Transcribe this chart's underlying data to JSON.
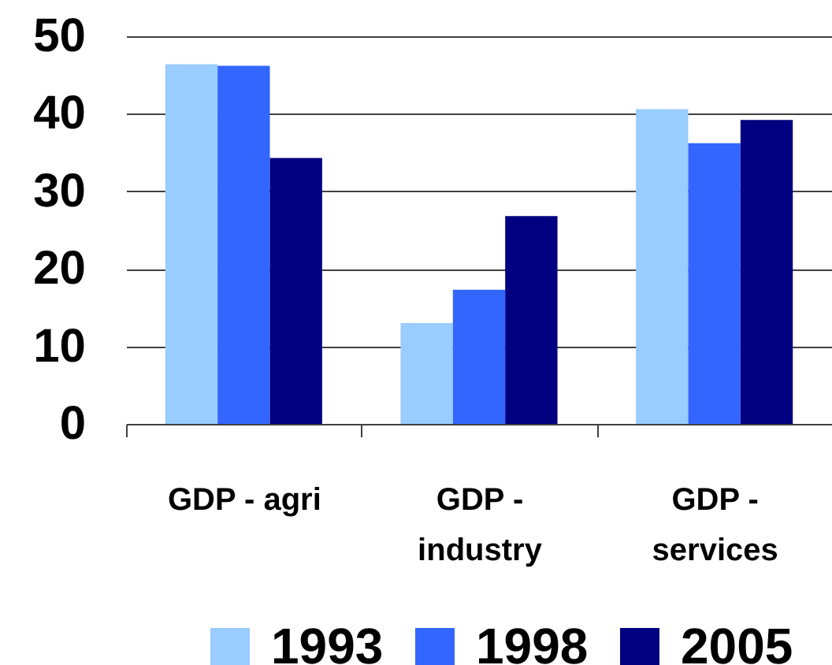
{
  "chart_data": {
    "type": "bar",
    "categories": [
      "GDP - agri",
      "GDP - industry",
      "GDP - services"
    ],
    "series": [
      {
        "name": "1993",
        "color": "#99ccff",
        "values": [
          46.4,
          13.0,
          40.6
        ]
      },
      {
        "name": "1998",
        "color": "#3366ff",
        "values": [
          46.2,
          17.3,
          36.2
        ]
      },
      {
        "name": "2005",
        "color": "#000080",
        "values": [
          34.3,
          26.8,
          39.2
        ]
      }
    ],
    "ylim": [
      0,
      50
    ],
    "yticks": [
      0,
      10,
      20,
      30,
      40,
      50
    ],
    "grid": "y",
    "legend": "bottom"
  }
}
